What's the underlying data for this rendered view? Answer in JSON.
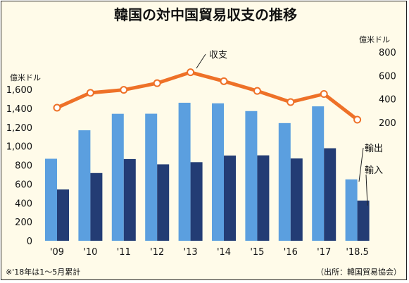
{
  "chart_data": {
    "type": "bar",
    "title": "韓国の対中国貿易収支の推移",
    "categories": [
      "'09",
      "'10",
      "'11",
      "'12",
      "'13",
      "'14",
      "'15",
      "'16",
      "'17",
      "'18.5"
    ],
    "left_axis": {
      "unit_label": "億米ドル",
      "ylim": [
        0,
        1600
      ],
      "ticks": [
        "0",
        "200",
        "400",
        "600",
        "800",
        "1,000",
        "1,200",
        "1,400",
        "1,600"
      ],
      "tick_values": [
        0,
        200,
        400,
        600,
        800,
        1000,
        1200,
        1400,
        1600
      ]
    },
    "right_axis": {
      "unit_label": "億米ドル",
      "ylim": [
        200,
        800
      ],
      "ticks": [
        "200",
        "400",
        "600",
        "800"
      ],
      "tick_values": [
        200,
        400,
        600,
        800
      ]
    },
    "series": [
      {
        "name": "輸出",
        "type": "bar",
        "axis": "left",
        "color": "#5b9fdf",
        "values": [
          867,
          1168,
          1342,
          1343,
          1459,
          1453,
          1371,
          1244,
          1421,
          649
        ]
      },
      {
        "name": "輸入",
        "type": "bar",
        "axis": "left",
        "color": "#233c74",
        "values": [
          542,
          716,
          864,
          808,
          831,
          901,
          903,
          870,
          978,
          425
        ]
      },
      {
        "name": "収支",
        "type": "line",
        "axis": "right",
        "color": "#ee7128",
        "values": [
          326,
          453,
          478,
          535,
          628,
          552,
          469,
          374,
          443,
          224
        ]
      }
    ],
    "grid": false,
    "footnote": "※'18年は1～5月累計",
    "source": "（出所：韓国貿易協会）"
  }
}
